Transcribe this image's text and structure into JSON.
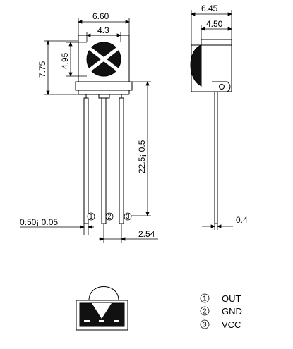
{
  "dimensions": {
    "front_width": "6.60",
    "lens_width": "4.3",
    "total_height": "7.75",
    "lens_height": "4.95",
    "lead_length": "22.5¡ 0.5",
    "lead_width": "0.50¡ 0.05",
    "pin_pitch": "2.54",
    "side_depth": "6.45",
    "side_lens_depth": "4.50",
    "lead_thickness": "0.4"
  },
  "pins": [
    "1",
    "2",
    "3"
  ],
  "legend": [
    {
      "num": "1",
      "label": "OUT"
    },
    {
      "num": "2",
      "label": "GND"
    },
    {
      "num": "3",
      "label": "VCC"
    }
  ],
  "colors": {
    "line": "#000000",
    "fill": "#111111",
    "background": "#ffffff"
  }
}
